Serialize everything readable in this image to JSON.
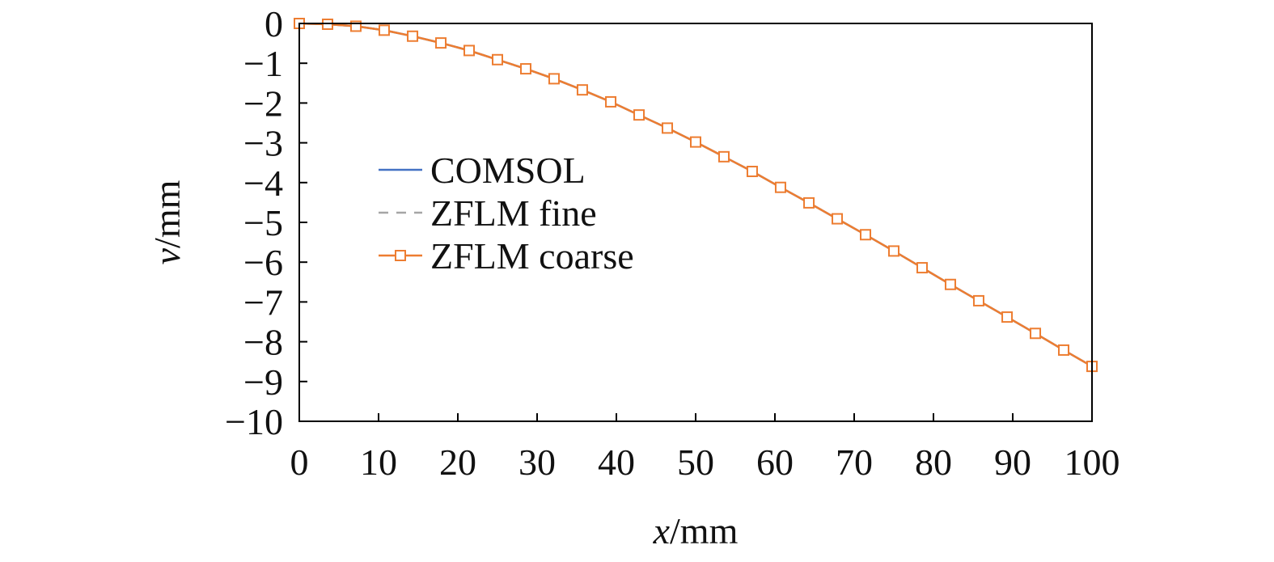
{
  "chart_data": {
    "type": "line",
    "title": "",
    "xlabel": {
      "var": "x",
      "unit": "/mm"
    },
    "ylabel": {
      "var": "v",
      "unit": "/mm"
    },
    "xlim": [
      0,
      100
    ],
    "ylim": [
      -10,
      0
    ],
    "x_ticks": [
      0,
      10,
      20,
      30,
      40,
      50,
      60,
      70,
      80,
      90,
      100
    ],
    "y_ticks": [
      0,
      -1,
      -2,
      -3,
      -4,
      -5,
      -6,
      -7,
      -8,
      -9,
      -10
    ],
    "x_tick_labels": [
      "0",
      "10",
      "20",
      "30",
      "40",
      "50",
      "60",
      "70",
      "80",
      "90",
      "100"
    ],
    "y_tick_labels": [
      "0",
      "−1",
      "−2",
      "−3",
      "−4",
      "−5",
      "−6",
      "−7",
      "−8",
      "−9",
      "−10"
    ],
    "grid": false,
    "legend_position": "middle-left",
    "series": [
      {
        "name": "COMSOL",
        "style": "solid",
        "color": "#4472C4",
        "x": [
          0,
          3.57,
          7.14,
          10.71,
          14.29,
          17.86,
          21.43,
          25.0,
          28.57,
          32.14,
          35.71,
          39.29,
          42.86,
          46.43,
          50.0,
          53.57,
          57.14,
          60.71,
          64.29,
          67.86,
          71.43,
          75.0,
          78.57,
          82.14,
          85.71,
          89.29,
          92.86,
          96.43,
          100.0
        ],
        "y": [
          0,
          -0.02,
          -0.07,
          -0.17,
          -0.32,
          -0.49,
          -0.68,
          -0.91,
          -1.14,
          -1.39,
          -1.67,
          -1.97,
          -2.3,
          -2.63,
          -2.98,
          -3.35,
          -3.72,
          -4.12,
          -4.51,
          -4.91,
          -5.31,
          -5.72,
          -6.14,
          -6.56,
          -6.97,
          -7.38,
          -7.79,
          -8.21,
          -8.62
        ]
      },
      {
        "name": "ZFLM fine",
        "style": "dashed",
        "color": "#A6A6A6",
        "x": [
          0,
          3.57,
          7.14,
          10.71,
          14.29,
          17.86,
          21.43,
          25.0,
          28.57,
          32.14,
          35.71,
          39.29,
          42.86,
          46.43,
          50.0,
          53.57,
          57.14,
          60.71,
          64.29,
          67.86,
          71.43,
          75.0,
          78.57,
          82.14,
          85.71,
          89.29,
          92.86,
          96.43,
          100.0
        ],
        "y": [
          0,
          -0.02,
          -0.07,
          -0.17,
          -0.32,
          -0.49,
          -0.68,
          -0.91,
          -1.14,
          -1.39,
          -1.67,
          -1.97,
          -2.3,
          -2.63,
          -2.98,
          -3.35,
          -3.72,
          -4.12,
          -4.51,
          -4.91,
          -5.31,
          -5.72,
          -6.14,
          -6.56,
          -6.97,
          -7.38,
          -7.79,
          -8.21,
          -8.62
        ]
      },
      {
        "name": "ZFLM coarse",
        "style": "solid-square-markers",
        "color": "#ED7D31",
        "x": [
          0,
          3.57,
          7.14,
          10.71,
          14.29,
          17.86,
          21.43,
          25.0,
          28.57,
          32.14,
          35.71,
          39.29,
          42.86,
          46.43,
          50.0,
          53.57,
          57.14,
          60.71,
          64.29,
          67.86,
          71.43,
          75.0,
          78.57,
          82.14,
          85.71,
          89.29,
          92.86,
          96.43,
          100.0
        ],
        "y": [
          0,
          -0.02,
          -0.07,
          -0.17,
          -0.32,
          -0.49,
          -0.68,
          -0.91,
          -1.14,
          -1.39,
          -1.67,
          -1.97,
          -2.3,
          -2.63,
          -2.98,
          -3.35,
          -3.72,
          -4.12,
          -4.51,
          -4.91,
          -5.31,
          -5.72,
          -6.14,
          -6.56,
          -6.97,
          -7.38,
          -7.79,
          -8.21,
          -8.62
        ]
      }
    ]
  }
}
